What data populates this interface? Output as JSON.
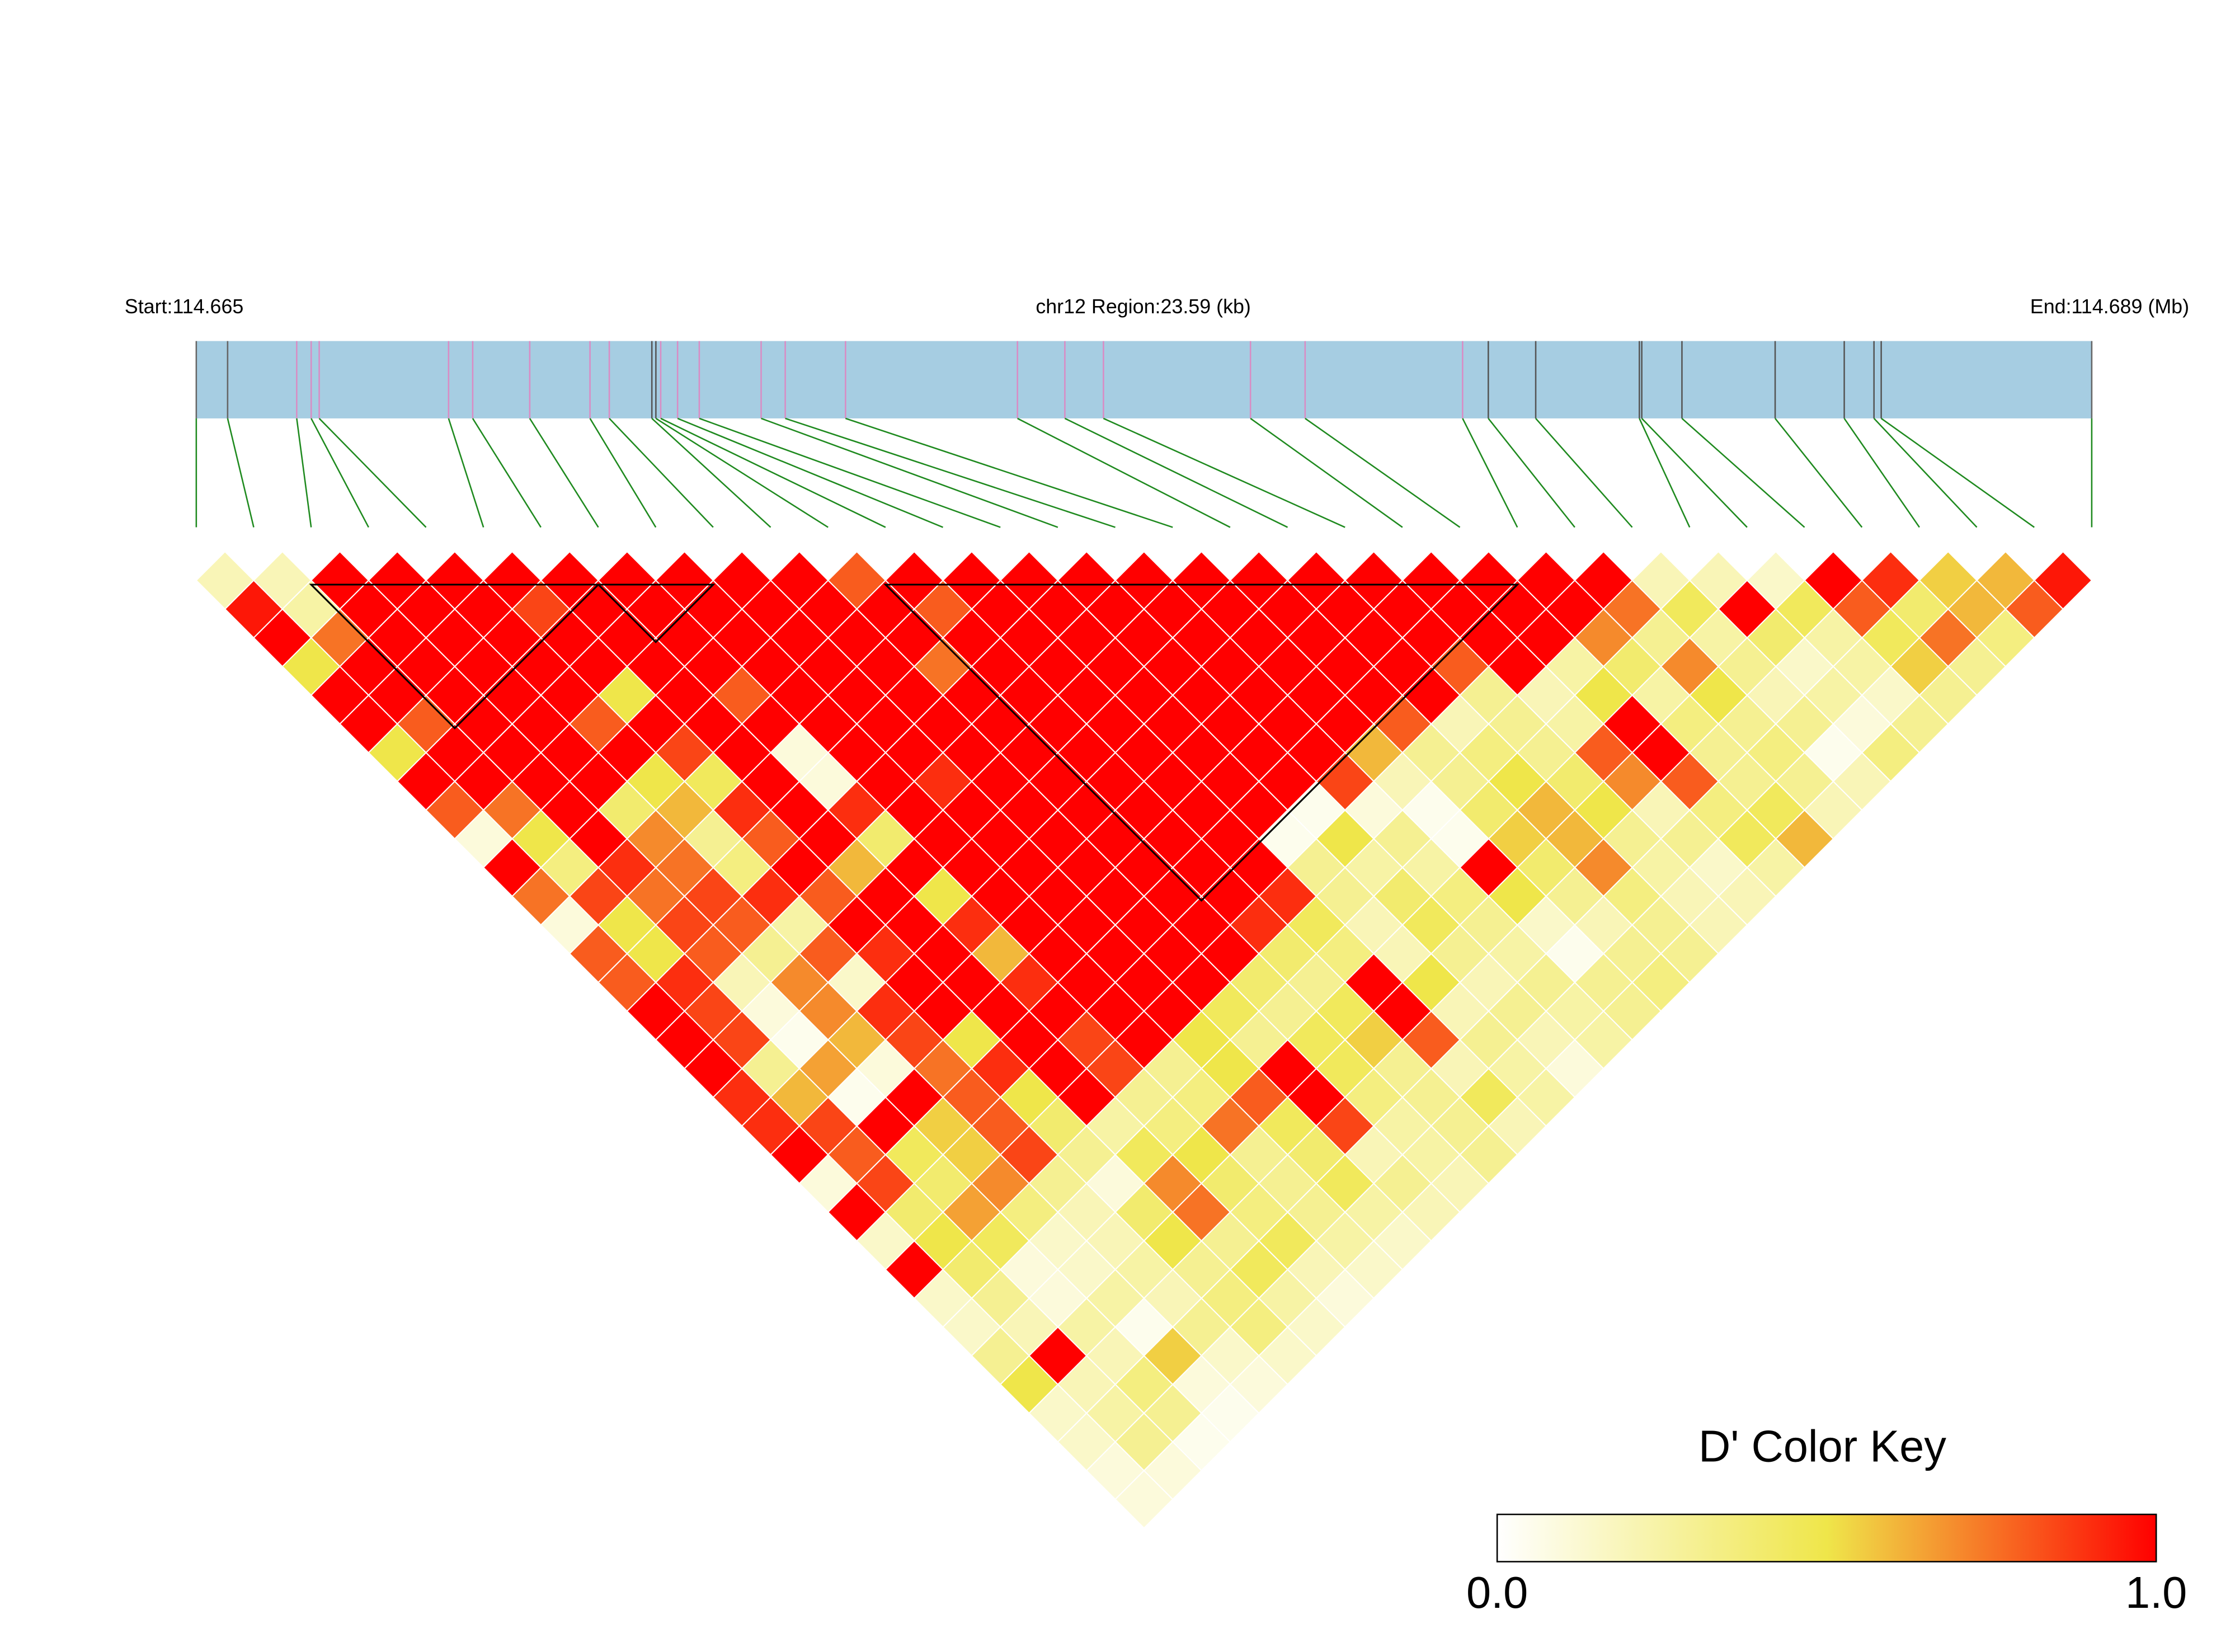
{
  "chart_data": {
    "type": "heatmap",
    "start_label": "Start:114.665",
    "region_label": "chr12 Region:23.59 (kb)",
    "end_label": "End:114.689 (Mb)",
    "xlim": [
      0,
      23.59
    ],
    "positions_kb": [
      0,
      0.39,
      1.25,
      1.43,
      1.53,
      3.14,
      3.44,
      4.15,
      4.9,
      5.14,
      5.67,
      5.72,
      5.78,
      5.99,
      6.26,
      7.03,
      7.33,
      8.08,
      10.22,
      10.81,
      11.29,
      13.12,
      13.8,
      15.76,
      16.08,
      16.67,
      17.96,
      17.99,
      18.49,
      19.65,
      20.51,
      20.88,
      20.97,
      23.59
    ],
    "marker_colors": [
      "#666666",
      "#666666",
      "#d98cc4",
      "#d98cc4",
      "#d98cc4",
      "#d98cc4",
      "#d98cc4",
      "#d98cc4",
      "#d98cc4",
      "#d98cc4",
      "#555555",
      "#555555",
      "#d98cc4",
      "#d98cc4",
      "#d98cc4",
      "#d98cc4",
      "#d98cc4",
      "#d98cc4",
      "#d98cc4",
      "#d98cc4",
      "#d98cc4",
      "#d98cc4",
      "#d98cc4",
      "#d98cc4",
      "#555555",
      "#555555",
      "#555555",
      "#555555",
      "#555555",
      "#555555",
      "#555555",
      "#555555",
      "#555555",
      "#666666"
    ],
    "dprime": [
      [
        0.2,
        0.2,
        1,
        1,
        1,
        1,
        1,
        1,
        1,
        1,
        1,
        0.8,
        1,
        1,
        1,
        1,
        1,
        1,
        1,
        1,
        1,
        1,
        1,
        1,
        1,
        0.2,
        0.2,
        0.15,
        1,
        0.9,
        0.55,
        0.6,
        0.95
      ],
      [
        0.95,
        0.25,
        1,
        1,
        1,
        0.85,
        1,
        1,
        1,
        1,
        1,
        1,
        0.8,
        1,
        1,
        1,
        1,
        1,
        1,
        1,
        1,
        1,
        1,
        1,
        0.75,
        0.45,
        1,
        0.45,
        0.8,
        0.4,
        0.6,
        0.8
      ],
      [
        1,
        0.75,
        1,
        1,
        1,
        1,
        1,
        1,
        1,
        1,
        1,
        1,
        1,
        1,
        1,
        1,
        1,
        1,
        1,
        1,
        1,
        1,
        1,
        0.7,
        0.3,
        0.25,
        0.4,
        0.25,
        0.45,
        0.75,
        0.35
      ],
      [
        0.5,
        1,
        1,
        1,
        1,
        1,
        1,
        1,
        1,
        1,
        1,
        0.75,
        1,
        1,
        1,
        1,
        1,
        1,
        1,
        1,
        0.8,
        1,
        0.25,
        0.4,
        0.7,
        0.3,
        0.15,
        0.25,
        0.55,
        0.3
      ],
      [
        1,
        1,
        1,
        1,
        1,
        0.5,
        1,
        0.8,
        1,
        1,
        1,
        1,
        1,
        1,
        1,
        1,
        1,
        1,
        1,
        1,
        0.3,
        0.2,
        0.5,
        0.25,
        0.5,
        0.2,
        0.25,
        0.15,
        0.3
      ],
      [
        1,
        0.8,
        1,
        1,
        0.8,
        1,
        1,
        1,
        1,
        1,
        1,
        1,
        1,
        1,
        1,
        1,
        1,
        1,
        0.8,
        0.2,
        0.3,
        0.25,
        1,
        0.35,
        0.3,
        0.3,
        0.1,
        0.3
      ],
      [
        0.5,
        1,
        1,
        1,
        1,
        0.85,
        1,
        0.1,
        1,
        1,
        1,
        1,
        1,
        1,
        1,
        1,
        1,
        0.6,
        0.3,
        0.35,
        0.3,
        0.8,
        1,
        0.3,
        0.35,
        0.05,
        0.35
      ],
      [
        1,
        1,
        1,
        1,
        0.5,
        0.45,
        1,
        0.1,
        1,
        0.9,
        1,
        1,
        1,
        1,
        1,
        1,
        0.85,
        0.2,
        0.3,
        0.5,
        0.4,
        0.7,
        0.8,
        0.3,
        0.3,
        0.2
      ],
      [
        0.8,
        0.75,
        1,
        0.4,
        0.6,
        0.9,
        1,
        0.9,
        1,
        1,
        1,
        1,
        1,
        1,
        1,
        0.05,
        0.1,
        0.05,
        0.4,
        0.6,
        0.5,
        0.2,
        0.35,
        0.45,
        0.2
      ],
      [
        0.1,
        0.5,
        1,
        0.7,
        0.3,
        0.8,
        1,
        0.4,
        1,
        1,
        1,
        1,
        1,
        1,
        0.05,
        0.5,
        0.3,
        0.05,
        0.55,
        0.6,
        0.3,
        0.3,
        0.45,
        0.6
      ],
      [
        1,
        0.35,
        0.9,
        0.75,
        0.35,
        1,
        0.6,
        1,
        1,
        1,
        1,
        1,
        1,
        1,
        0.3,
        0.25,
        0.25,
        1,
        0.4,
        0.7,
        0.25,
        0.15,
        0.25
      ],
      [
        0.75,
        0.85,
        0.75,
        0.85,
        0.9,
        0.8,
        1,
        0.5,
        1,
        1,
        1,
        1,
        1,
        0.9,
        0.3,
        0.4,
        0.35,
        0.5,
        0.3,
        0.35,
        0.2,
        0.2
      ],
      [
        0.1,
        0.5,
        0.85,
        0.8,
        0.25,
        1,
        1,
        0.9,
        1,
        1,
        1,
        1,
        0.9,
        0.45,
        0.2,
        0.45,
        0.3,
        0.15,
        0.2,
        0.3,
        0.2
      ],
      [
        0.8,
        0.5,
        0.8,
        0.3,
        0.8,
        0.9,
        1,
        0.6,
        1,
        1,
        1,
        1,
        0.4,
        0.35,
        0.2,
        0.3,
        0.25,
        0.05,
        0.3,
        0.3
      ],
      [
        0.8,
        0.9,
        0.2,
        0.7,
        0.15,
        1,
        1,
        0.9,
        1,
        1,
        1,
        0.4,
        0.3,
        1,
        0.5,
        0.2,
        0.3,
        0.3,
        0.35
      ],
      [
        1,
        0.85,
        0.1,
        0.7,
        0.9,
        1,
        1,
        1,
        1,
        1,
        0.45,
        0.3,
        0.45,
        1,
        0.2,
        0.3,
        0.25,
        0.3
      ],
      [
        1,
        0.85,
        0.05,
        0.6,
        0.85,
        0.5,
        1,
        0.85,
        1,
        0.5,
        0.3,
        0.45,
        0.55,
        0.8,
        0.3,
        0.2,
        0.25
      ],
      [
        1,
        0.3,
        0.65,
        0.1,
        0.75,
        0.9,
        1,
        0.85,
        0.3,
        0.5,
        1,
        0.45,
        0.3,
        0.2,
        0.25,
        0.1
      ],
      [
        0.9,
        0.6,
        0.05,
        1,
        0.8,
        0.5,
        1,
        0.3,
        0.35,
        0.8,
        1,
        0.35,
        0.3,
        0.45,
        0.25
      ],
      [
        0.9,
        0.85,
        1,
        0.55,
        0.8,
        0.4,
        0.25,
        0.35,
        0.75,
        0.45,
        0.85,
        0.25,
        0.3,
        0.2
      ],
      [
        1,
        0.8,
        0.45,
        0.55,
        0.85,
        0.3,
        0.45,
        0.5,
        0.3,
        0.4,
        0.2,
        0.25,
        0.3
      ],
      [
        0.1,
        0.85,
        0.4,
        0.7,
        0.3,
        0.1,
        0.7,
        0.4,
        0.3,
        0.45,
        0.3,
        0.2
      ],
      [
        1,
        0.4,
        0.65,
        0.35,
        0.2,
        0.4,
        0.75,
        0.35,
        0.3,
        0.25,
        0.2
      ],
      [
        0.15,
        0.5,
        0.45,
        0.15,
        0.2,
        0.5,
        0.3,
        0.45,
        0.25,
        0.15
      ],
      [
        1,
        0.4,
        0.1,
        0.15,
        0.25,
        0.3,
        0.45,
        0.2,
        0.15
      ],
      [
        0.15,
        0.3,
        0.1,
        0.25,
        0.2,
        0.35,
        0.25,
        0.1
      ],
      [
        0.15,
        0.2,
        0.25,
        0.05,
        0.3,
        0.35,
        0.15
      ],
      [
        0.3,
        1,
        0.2,
        0.55,
        0.15,
        0.15
      ],
      [
        0.5,
        0.2,
        0.35,
        0.1,
        0.1
      ],
      [
        0.15,
        0.25,
        0.3,
        0.05
      ],
      [
        0.15,
        0.3,
        0.05
      ],
      [
        0.1,
        0.1
      ],
      [
        0.1
      ]
    ],
    "blocks": [
      [
        2,
        7
      ],
      [
        7,
        9
      ],
      [
        12,
        23
      ]
    ],
    "colorscale": [
      {
        "value": 0,
        "color": "#ffffff"
      },
      {
        "value": 0.5,
        "color": "#efe64a"
      },
      {
        "value": 1,
        "color": "#ff0000"
      }
    ],
    "key_title": "D' Color Key",
    "key_ticks": [
      {
        "value": 0,
        "label": "0.0"
      },
      {
        "value": 1,
        "label": "1.0"
      }
    ]
  }
}
